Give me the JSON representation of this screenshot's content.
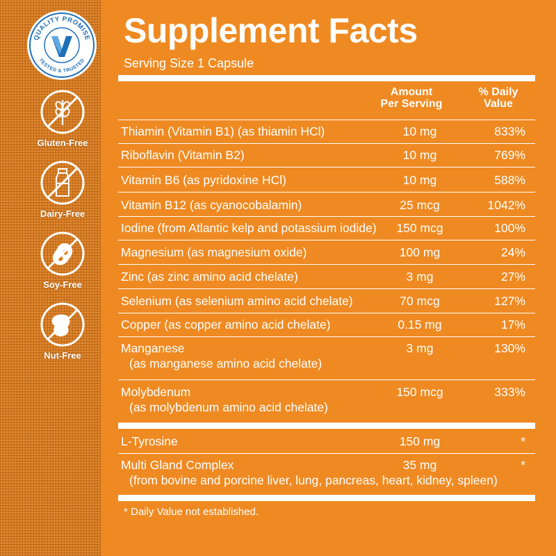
{
  "badges": {
    "seal_top": "QUALITY PROMISE",
    "seal_bottom": "TESTED & TRUSTED",
    "items": [
      {
        "label": "Gluten-Free",
        "icon": "wheat-icon"
      },
      {
        "label": "Dairy-Free",
        "icon": "bottle-icon"
      },
      {
        "label": "Soy-Free",
        "icon": "soybean-icon"
      },
      {
        "label": "Nut-Free",
        "icon": "peanut-icon"
      }
    ]
  },
  "facts": {
    "title": "Supplement Facts",
    "serving_size": "Serving Size 1 Capsule",
    "col_amount_1": "Amount",
    "col_amount_2": "Per Serving",
    "col_dv_1": "% Daily",
    "col_dv_2": "Value",
    "rows": [
      {
        "name": "Thiamin (Vitamin B1) (as thiamin HCl)",
        "amount": "10 mg",
        "dv": "833%"
      },
      {
        "name": "Riboflavin (Vitamin B2)",
        "amount": "10 mg",
        "dv": "769%"
      },
      {
        "name": "Vitamin B6 (as pyridoxine HCl)",
        "amount": "10 mg",
        "dv": "588%"
      },
      {
        "name": "Vitamin B12 (as cyanocobalamin)",
        "amount": "25 mcg",
        "dv": "1042%"
      },
      {
        "name": "Iodine (from Atlantic kelp and potassium iodide)",
        "amount": "150 mcg",
        "dv": "100%"
      },
      {
        "name": "Magnesium (as magnesium oxide)",
        "amount": "100 mg",
        "dv": "24%"
      },
      {
        "name": "Zinc (as zinc amino acid chelate)",
        "amount": "3 mg",
        "dv": "27%"
      },
      {
        "name": "Selenium (as selenium amino acid chelate)",
        "amount": "70 mcg",
        "dv": "127%"
      },
      {
        "name": "Copper (as copper amino acid chelate)",
        "amount": "0.15 mg",
        "dv": "17%"
      },
      {
        "name": "Manganese",
        "name2": "(as manganese amino acid chelate)",
        "amount": "3 mg",
        "dv": "130%"
      },
      {
        "name": "Molybdenum",
        "name2": "(as molybdenum amino acid chelate)",
        "amount": "150 mcg",
        "dv": "333%"
      }
    ],
    "other_rows": [
      {
        "name": "L-Tyrosine",
        "amount": "150 mg",
        "dv": "*"
      },
      {
        "name": "Multi Gland Complex",
        "name2": "(from bovine and porcine liver, lung, pancreas, heart, kidney, spleen)",
        "amount": "35 mg",
        "dv": "*"
      }
    ],
    "footnote": "* Daily Value not established."
  },
  "colors": {
    "background": "#ef8a22",
    "seal_blue": "#1f6fb8",
    "text": "#ffffff"
  }
}
